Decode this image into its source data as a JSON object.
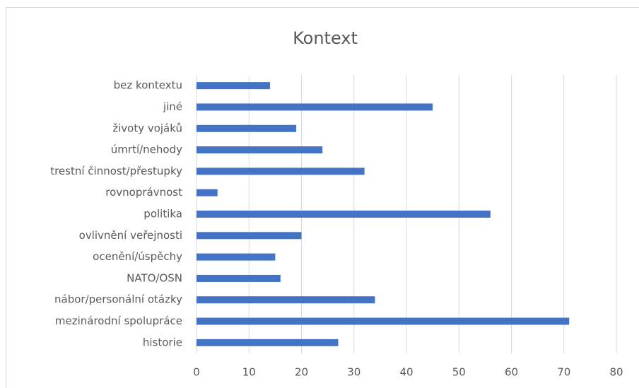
{
  "chart_data": {
    "type": "bar",
    "orientation": "horizontal",
    "title": "Kontext",
    "categories": [
      "bez kontextu",
      "jiné",
      "životy vojáků",
      "úmrtí/nehody",
      "trestní činnost/přestupky",
      "rovnoprávnost",
      "politika",
      "ovlivnění veřejnosti",
      "ocenění/úspěchy",
      "NATO/OSN",
      "nábor/personální otázky",
      "mezinárodní spolupráce",
      "historie"
    ],
    "values": [
      14,
      45,
      19,
      24,
      32,
      4,
      56,
      20,
      15,
      16,
      34,
      71,
      27
    ],
    "color": "#4472c4",
    "xlim": [
      0,
      80
    ],
    "xticks": [
      0,
      10,
      20,
      30,
      40,
      50,
      60,
      70,
      80
    ],
    "grid": true
  }
}
